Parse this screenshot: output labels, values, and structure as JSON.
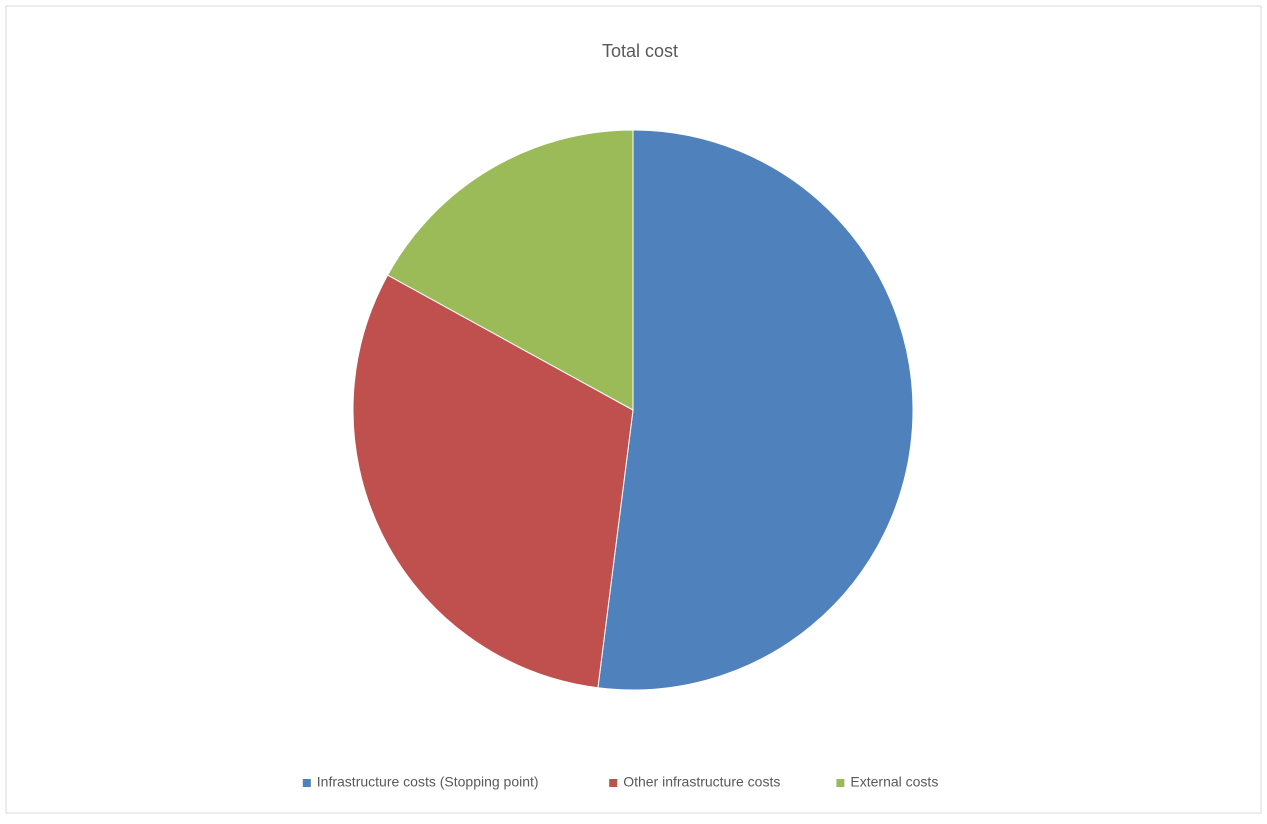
{
  "chart_data": {
    "type": "pie",
    "title": "Total cost",
    "categories": [
      "Infrastructure costs (Stopping point)",
      "Other infrastructure costs",
      "External costs"
    ],
    "values": [
      52,
      31,
      17
    ],
    "colors": [
      "#4f81bd",
      "#c0504d",
      "#9bbb59"
    ],
    "legend": "bottom"
  }
}
